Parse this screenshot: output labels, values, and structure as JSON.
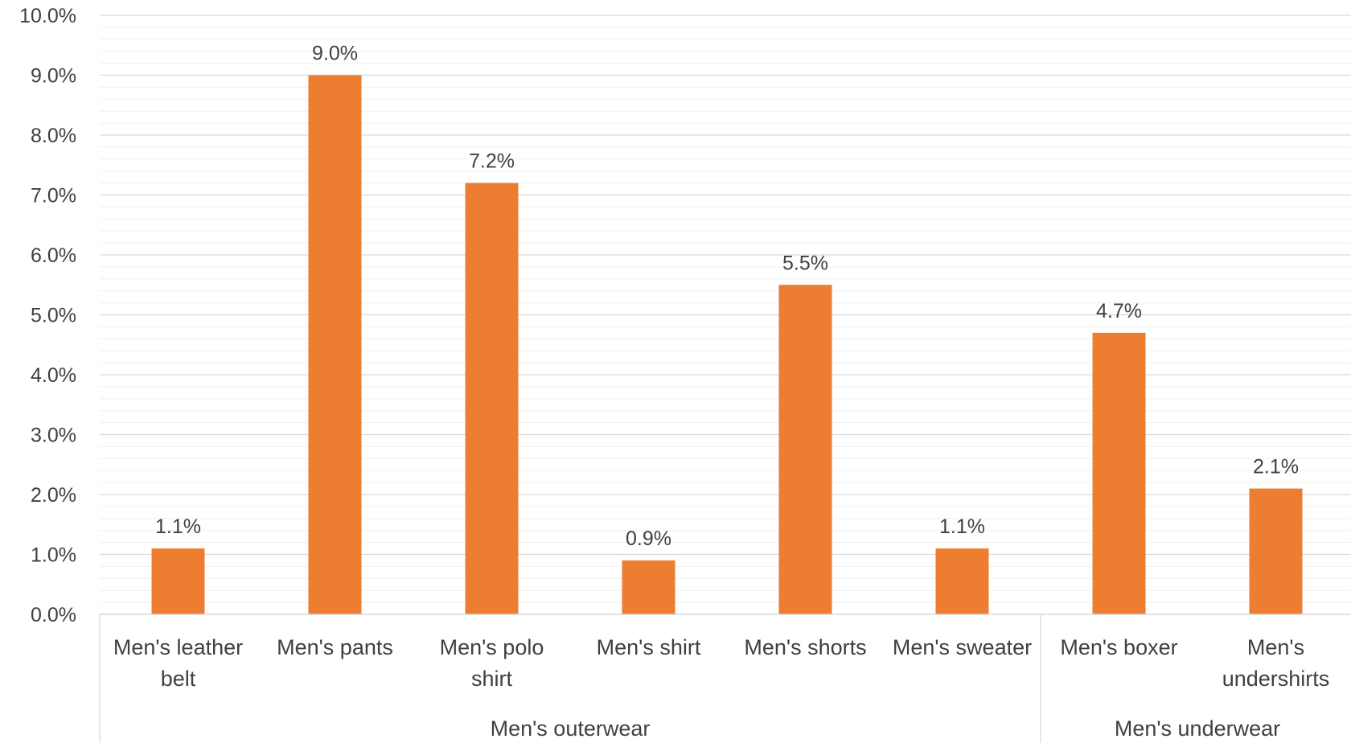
{
  "chart_data": {
    "type": "bar",
    "title": "",
    "xlabel": "",
    "ylabel": "",
    "ylim": [
      0,
      10
    ],
    "grid": true,
    "y_ticks": [
      "0.0%",
      "1.0%",
      "2.0%",
      "3.0%",
      "4.0%",
      "5.0%",
      "6.0%",
      "7.0%",
      "8.0%",
      "9.0%",
      "10.0%"
    ],
    "bar_color": "#ED7D31",
    "categories": [
      {
        "label": [
          "Men's leather",
          "belt"
        ],
        "group": 0
      },
      {
        "label": [
          "Men's pants"
        ],
        "group": 0
      },
      {
        "label": [
          "Men's polo",
          "shirt"
        ],
        "group": 0
      },
      {
        "label": [
          "Men's shirt"
        ],
        "group": 0
      },
      {
        "label": [
          "Men's shorts"
        ],
        "group": 0
      },
      {
        "label": [
          "Men's sweater"
        ],
        "group": 0
      },
      {
        "label": [
          "Men's boxer"
        ],
        "group": 1
      },
      {
        "label": [
          "Men's",
          "undershirts"
        ],
        "group": 1
      }
    ],
    "values": [
      1.1,
      9.0,
      7.2,
      0.9,
      5.5,
      1.1,
      4.7,
      2.1
    ],
    "data_labels": [
      "1.1%",
      "9.0%",
      "7.2%",
      "0.9%",
      "5.5%",
      "1.1%",
      "4.7%",
      "2.1%"
    ],
    "groups": [
      {
        "name": "Men's outerwear"
      },
      {
        "name": "Men's underwear"
      }
    ]
  }
}
